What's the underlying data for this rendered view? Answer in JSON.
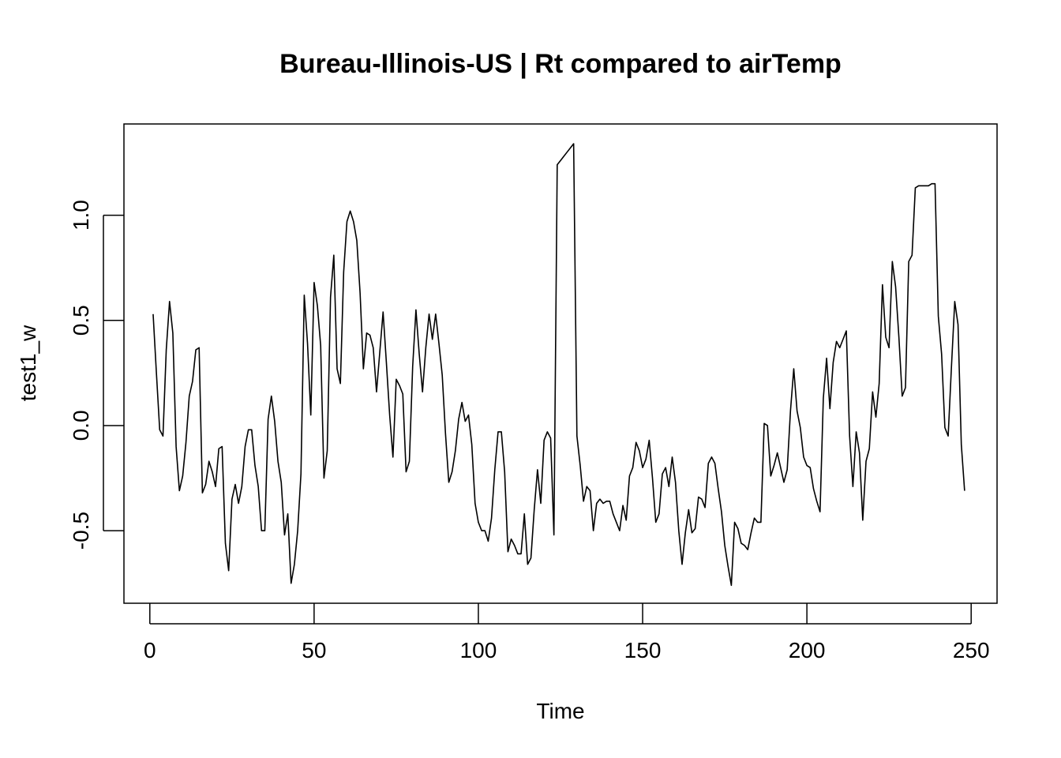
{
  "chart_data": {
    "type": "line",
    "title": "Bureau-Illinois-US | Rt compared to airTemp",
    "xlabel": "Time",
    "ylabel": "test1_w",
    "xlim": [
      -7.88,
      257.88
    ],
    "ylim": [
      -0.845,
      1.434
    ],
    "x_ticks": [
      0,
      50,
      100,
      150,
      200,
      250
    ],
    "x_tick_labels": [
      "0",
      "50",
      "100",
      "150",
      "200",
      "250"
    ],
    "y_ticks": [
      -0.5,
      0.0,
      0.5,
      1.0
    ],
    "y_tick_labels": [
      "-0.5",
      "0.0",
      "0.5",
      "1.0"
    ],
    "grid": false,
    "legend": "none",
    "line_color": "#000000",
    "series": [
      {
        "x_start": 1,
        "x_step": 1,
        "values": [
          0.53,
          0.25,
          -0.02,
          -0.05,
          0.36,
          0.59,
          0.44,
          -0.1,
          -0.31,
          -0.24,
          -0.08,
          0.14,
          0.21,
          0.36,
          0.37,
          -0.32,
          -0.28,
          -0.17,
          -0.22,
          -0.29,
          -0.11,
          -0.1,
          -0.56,
          -0.69,
          -0.35,
          -0.28,
          -0.37,
          -0.29,
          -0.1,
          -0.02,
          -0.02,
          -0.19,
          -0.29,
          -0.5,
          -0.5,
          0.03,
          0.14,
          0.02,
          -0.17,
          -0.27,
          -0.52,
          -0.42,
          -0.75,
          -0.66,
          -0.5,
          -0.23,
          0.62,
          0.39,
          0.05,
          0.68,
          0.57,
          0.38,
          -0.25,
          -0.12,
          0.61,
          0.81,
          0.27,
          0.2,
          0.73,
          0.97,
          1.02,
          0.97,
          0.88,
          0.63,
          0.27,
          0.44,
          0.43,
          0.37,
          0.16,
          0.35,
          0.54,
          0.3,
          0.05,
          -0.15,
          0.22,
          0.19,
          0.15,
          -0.22,
          -0.17,
          0.28,
          0.55,
          0.34,
          0.16,
          0.37,
          0.53,
          0.41,
          0.53,
          0.39,
          0.24,
          -0.04,
          -0.27,
          -0.22,
          -0.12,
          0.03,
          0.11,
          0.02,
          0.05,
          -0.09,
          -0.37,
          -0.46,
          -0.5,
          -0.5,
          -0.55,
          -0.44,
          -0.21,
          -0.03,
          -0.03,
          -0.22,
          -0.6,
          -0.54,
          -0.57,
          -0.61,
          -0.61,
          -0.42,
          -0.66,
          -0.63,
          -0.4,
          -0.21,
          -0.37,
          -0.07,
          -0.03,
          -0.06,
          -0.52,
          1.24,
          1.26,
          1.28,
          1.3,
          1.32,
          1.34,
          -0.05,
          -0.19,
          -0.36,
          -0.29,
          -0.31,
          -0.5,
          -0.37,
          -0.35,
          -0.37,
          -0.36,
          -0.36,
          -0.42,
          -0.46,
          -0.5,
          -0.38,
          -0.45,
          -0.24,
          -0.2,
          -0.08,
          -0.12,
          -0.2,
          -0.16,
          -0.07,
          -0.25,
          -0.46,
          -0.42,
          -0.23,
          -0.2,
          -0.29,
          -0.15,
          -0.27,
          -0.5,
          -0.66,
          -0.51,
          -0.4,
          -0.51,
          -0.49,
          -0.34,
          -0.35,
          -0.39,
          -0.18,
          -0.15,
          -0.18,
          -0.3,
          -0.41,
          -0.57,
          -0.67,
          -0.76,
          -0.46,
          -0.49,
          -0.56,
          -0.57,
          -0.59,
          -0.51,
          -0.44,
          -0.46,
          -0.46,
          0.01,
          0.0,
          -0.24,
          -0.19,
          -0.13,
          -0.2,
          -0.27,
          -0.21,
          0.07,
          0.27,
          0.07,
          -0.01,
          -0.15,
          -0.19,
          -0.2,
          -0.3,
          -0.36,
          -0.41,
          0.13,
          0.32,
          0.08,
          0.3,
          0.4,
          0.37,
          0.41,
          0.45,
          -0.05,
          -0.29,
          -0.03,
          -0.13,
          -0.45,
          -0.17,
          -0.11,
          0.16,
          0.04,
          0.2,
          0.67,
          0.42,
          0.37,
          0.78,
          0.66,
          0.42,
          0.14,
          0.18,
          0.78,
          0.81,
          1.13,
          1.14,
          1.14,
          1.14,
          1.14,
          1.15,
          1.15,
          0.52,
          0.34,
          -0.01,
          -0.05,
          0.28,
          0.59,
          0.48,
          -0.09,
          -0.31
        ]
      }
    ]
  }
}
